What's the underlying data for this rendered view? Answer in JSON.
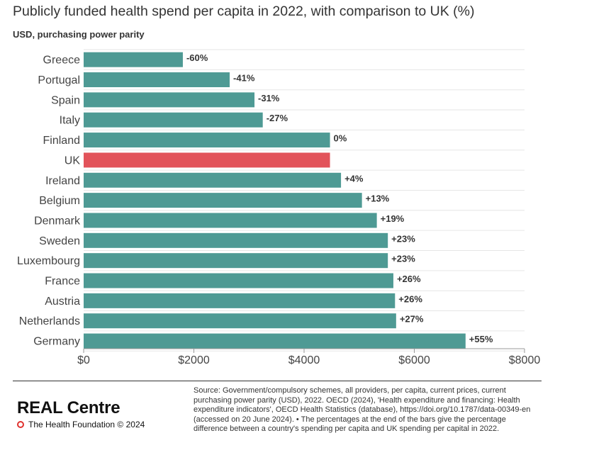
{
  "header": {
    "title": "Publicly funded health spend per capita in 2022, with comparison to UK (%)",
    "subtitle": "USD, purchasing power parity"
  },
  "chart_data": {
    "type": "bar",
    "orientation": "horizontal",
    "categories": [
      "Greece",
      "Portugal",
      "Spain",
      "Italy",
      "Finland",
      "UK",
      "Ireland",
      "Belgium",
      "Denmark",
      "Sweden",
      "Luxembourg",
      "France",
      "Austria",
      "Netherlands",
      "Germany"
    ],
    "values": [
      1800,
      2650,
      3100,
      3250,
      4470,
      4470,
      4670,
      5050,
      5320,
      5520,
      5520,
      5620,
      5650,
      5670,
      6930
    ],
    "labels": [
      "-60%",
      "-41%",
      "-31%",
      "-27%",
      "0%",
      "",
      "+4%",
      "+13%",
      "+19%",
      "+23%",
      "+23%",
      "+26%",
      "+26%",
      "+27%",
      "+55%"
    ],
    "highlight": "UK",
    "xlim": [
      0,
      8000
    ],
    "xticks": [
      0,
      2000,
      4000,
      6000,
      8000
    ],
    "xtick_labels": [
      "$0",
      "$2000",
      "$4000",
      "$6000",
      "$8000"
    ],
    "grid": true,
    "colors": {
      "bar": "#4e9a94",
      "highlight": "#e2535a",
      "grid": "#e6e6e6",
      "axis": "#999999"
    }
  },
  "footer": {
    "brand": "REAL Centre",
    "org": "The Health Foundation © 2024",
    "source": "Source: Government/compulsory schemes, all providers, per capita, current prices, current purchasing power parity (USD), 2022. OECD (2024), 'Health expenditure and financing: Health expenditure indicators', OECD Health Statistics (database), https://doi.org/10.1787/data-00349-en (accessed on 20 June 2024). • The percentages at the end of the bars give the percentage difference between a country's spending per capita and UK spending per capital in 2022."
  }
}
